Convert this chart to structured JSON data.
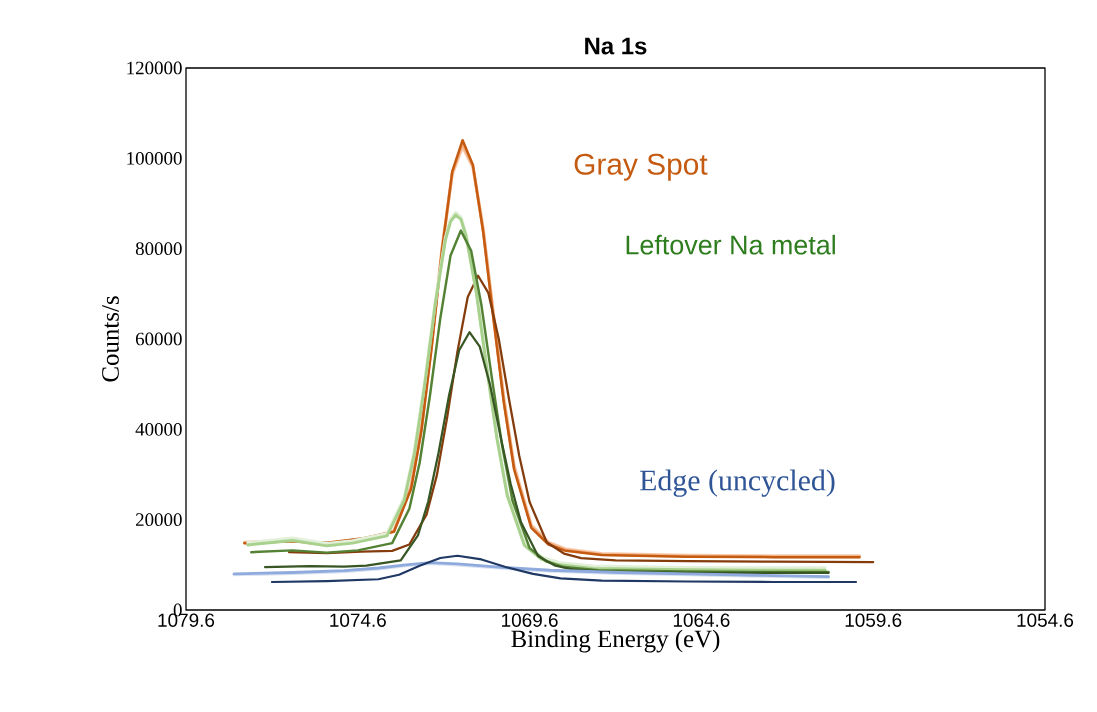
{
  "chart_data": {
    "type": "line",
    "title": "Na 1s",
    "xlabel": "Binding Energy (eV)",
    "ylabel": "Counts/s",
    "xlim": [
      1079.6,
      1054.6
    ],
    "ylim": [
      0,
      120000
    ],
    "xticks": [
      1079.6,
      1074.6,
      1069.6,
      1064.6,
      1059.6,
      1054.6
    ],
    "yticks": [
      0,
      20000,
      40000,
      60000,
      80000,
      100000,
      120000
    ],
    "grid": false,
    "marker": "none",
    "line_style": "solid",
    "annotations": [
      "Gray Spot",
      "Leftover Na metal",
      "Edge (uncycled)"
    ],
    "series": [
      {
        "color": "#f8cbad",
        "x": [
          1077.9,
          1076.5,
          1075.5,
          1074.5,
          1073.55,
          1073.05,
          1072.75,
          1072.45,
          1072.15,
          1071.85,
          1071.55,
          1071.25,
          1070.95,
          1070.65,
          1070.35,
          1070.05,
          1069.55,
          1069.05,
          1068.55,
          1067.5,
          1065,
          1062.5,
          1060.0
        ],
        "values": [
          15000,
          15400,
          14500,
          15500,
          17500,
          27500,
          40500,
          59000,
          80000,
          96500,
          102500,
          98000,
          84500,
          65500,
          47000,
          32000,
          18800,
          15000,
          13500,
          12500,
          12100,
          12000,
          12000
        ]
      },
      {
        "color": "#f4b183",
        "x": [
          1077.9,
          1076.5,
          1075.5,
          1074.5,
          1073.55,
          1073.05,
          1072.75,
          1072.45,
          1072.15,
          1071.85,
          1071.55,
          1071.25,
          1070.95,
          1070.65,
          1070.35,
          1070.05,
          1069.55,
          1069.05,
          1068.55,
          1067.5,
          1065,
          1062.5,
          1060.0
        ],
        "values": [
          14900,
          15300,
          14400,
          15400,
          17400,
          27200,
          40000,
          58600,
          79800,
          96800,
          103200,
          98300,
          84000,
          65000,
          46500,
          31500,
          18500,
          14800,
          13300,
          12300,
          11900,
          11800,
          11800
        ]
      },
      {
        "color": "#c55a11",
        "x": [
          1077.9,
          1076.5,
          1075.5,
          1074.5,
          1073.55,
          1073.05,
          1072.75,
          1072.45,
          1072.15,
          1071.85,
          1071.55,
          1071.25,
          1070.95,
          1070.65,
          1070.35,
          1070.05,
          1069.55,
          1069.05,
          1068.55,
          1067.5,
          1065,
          1062.5,
          1060.0
        ],
        "values": [
          14800,
          15200,
          14900,
          15800,
          17300,
          26800,
          39600,
          58200,
          79600,
          97100,
          104000,
          98500,
          83700,
          64300,
          45900,
          31100,
          18200,
          14500,
          13100,
          12200,
          11800,
          11700,
          11700
        ]
      },
      {
        "color": "#843c0c",
        "x": [
          1076.6,
          1075.5,
          1074.5,
          1073.6,
          1073.1,
          1072.6,
          1072.3,
          1072.0,
          1071.7,
          1071.4,
          1071.1,
          1070.8,
          1070.5,
          1070.2,
          1069.9,
          1069.6,
          1069.1,
          1068.6,
          1068.1,
          1067.1,
          1065,
          1062.5,
          1059.6
        ],
        "values": [
          12800,
          12600,
          12900,
          13100,
          14500,
          21100,
          29800,
          42600,
          57200,
          69300,
          74000,
          70200,
          60100,
          46700,
          34100,
          23900,
          15000,
          12500,
          11500,
          11000,
          10800,
          10700,
          10600
        ]
      },
      {
        "color": "#e2f0d9",
        "x": [
          1077.8,
          1076.5,
          1075.5,
          1074.75,
          1073.75,
          1073.25,
          1072.95,
          1072.65,
          1072.35,
          1072.05,
          1071.9,
          1071.75,
          1071.6,
          1071.45,
          1071.15,
          1070.85,
          1070.55,
          1070.25,
          1069.75,
          1069.25,
          1068.75,
          1067.75,
          1065,
          1063,
          1061.0
        ],
        "values": [
          14900,
          15900,
          14700,
          15300,
          16900,
          24900,
          35300,
          50600,
          68000,
          82400,
          86500,
          88000,
          87000,
          83300,
          70700,
          54200,
          38400,
          25800,
          14800,
          11700,
          10500,
          9700,
          9400,
          9300,
          9300
        ]
      },
      {
        "color": "#a9d18e",
        "x": [
          1077.8,
          1076.5,
          1075.5,
          1074.75,
          1073.75,
          1073.25,
          1072.95,
          1072.65,
          1072.35,
          1072.05,
          1071.9,
          1071.75,
          1071.6,
          1071.45,
          1071.15,
          1070.85,
          1070.55,
          1070.25,
          1069.75,
          1069.25,
          1068.75,
          1067.75,
          1065,
          1063,
          1061.0
        ],
        "values": [
          14400,
          15400,
          14200,
          14800,
          16400,
          24300,
          34700,
          50000,
          67500,
          81900,
          86000,
          87500,
          86500,
          82800,
          70200,
          53700,
          37900,
          25300,
          14300,
          11200,
          10000,
          9200,
          8900,
          8800,
          8800
        ]
      },
      {
        "color": "#548235",
        "x": [
          1077.7,
          1076.5,
          1075.5,
          1074.6,
          1073.6,
          1073.1,
          1072.8,
          1072.5,
          1072.2,
          1071.9,
          1071.6,
          1071.3,
          1071.0,
          1070.7,
          1070.4,
          1070.1,
          1069.6,
          1069.1,
          1068.6,
          1067.6,
          1065,
          1063,
          1060.9
        ],
        "values": [
          12800,
          13200,
          12700,
          13200,
          14800,
          22400,
          32600,
          47500,
          64500,
          78500,
          84000,
          79500,
          67400,
          51500,
          36400,
          24300,
          13700,
          10700,
          9500,
          8800,
          8500,
          8400,
          8400
        ]
      },
      {
        "color": "#375623",
        "x": [
          1077.3,
          1076.0,
          1075.0,
          1074.35,
          1073.35,
          1072.85,
          1072.55,
          1072.25,
          1071.95,
          1071.65,
          1071.35,
          1071.05,
          1070.75,
          1070.45,
          1070.15,
          1069.85,
          1069.35,
          1068.85,
          1068.35,
          1067.35,
          1065,
          1063,
          1060.9
        ],
        "values": [
          9500,
          9700,
          9600,
          9800,
          11000,
          16500,
          24000,
          34800,
          47300,
          57500,
          61500,
          58300,
          49800,
          38600,
          27900,
          19400,
          11900,
          9800,
          9000,
          8500,
          8200,
          8200,
          8200
        ]
      },
      {
        "color": "#dae3f3",
        "x": [
          1078.2,
          1076.5,
          1075.0,
          1074.0,
          1073.2,
          1072.5,
          1071.7,
          1070.5,
          1069.0,
          1067.0,
          1065.0,
          1063.0,
          1060.9
        ],
        "values": [
          7800,
          8100,
          8500,
          9100,
          9800,
          10300,
          10000,
          9300,
          8600,
          8100,
          7800,
          7500,
          7200
        ]
      },
      {
        "color": "#8faadc",
        "x": [
          1078.2,
          1076.5,
          1075.0,
          1074.0,
          1073.2,
          1072.5,
          1071.7,
          1070.5,
          1069.0,
          1067.0,
          1065.0,
          1063.0,
          1060.9
        ],
        "values": [
          8000,
          8300,
          8700,
          9300,
          10000,
          10500,
          10200,
          9500,
          8800,
          8300,
          8000,
          7700,
          7400
        ]
      },
      {
        "color": "#1f3864",
        "x": [
          1077.1,
          1075.5,
          1074.0,
          1073.4,
          1072.8,
          1072.2,
          1071.7,
          1071.0,
          1070.3,
          1069.5,
          1068.7,
          1067.5,
          1065.0,
          1062.5,
          1060.1
        ],
        "values": [
          6200,
          6400,
          6800,
          7800,
          9800,
          11500,
          12000,
          11200,
          9500,
          8000,
          7000,
          6500,
          6300,
          6200,
          6200
        ]
      }
    ]
  }
}
